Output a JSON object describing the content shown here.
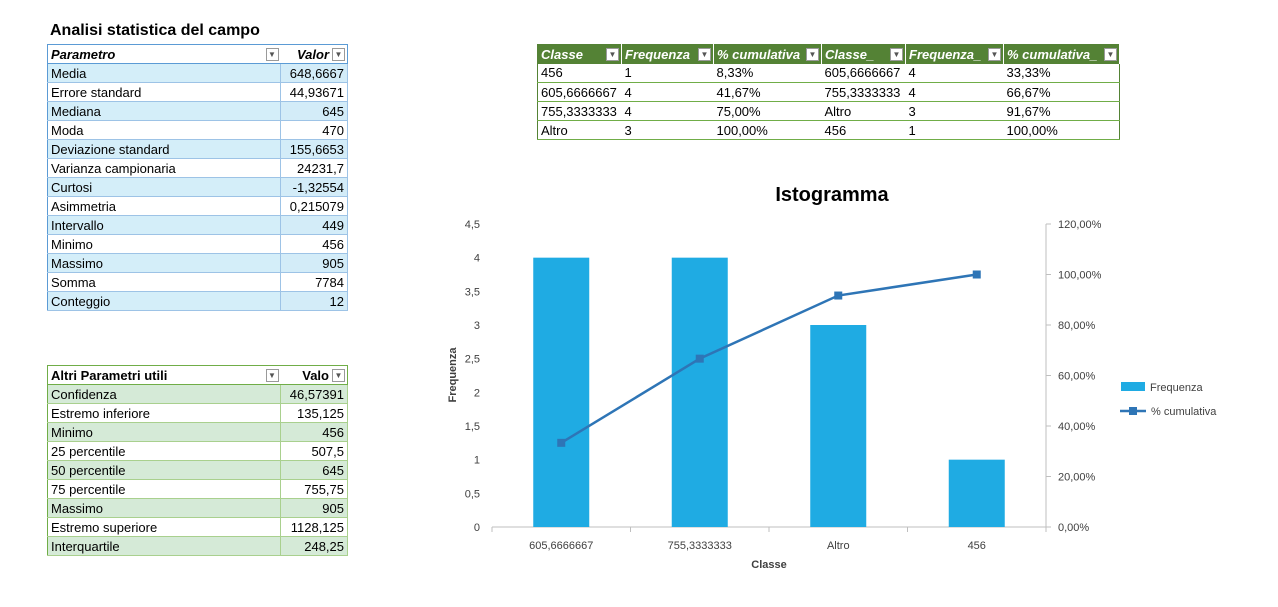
{
  "stats": {
    "title": "Analisi statistica del campo",
    "headers": [
      "Parametro",
      "Valor"
    ],
    "rows": [
      [
        "Media",
        "648,6667"
      ],
      [
        "Errore standard",
        "44,93671"
      ],
      [
        "Mediana",
        "645"
      ],
      [
        "Moda",
        "470"
      ],
      [
        "Deviazione standard",
        "155,6653"
      ],
      [
        "Varianza campionaria",
        "24231,7"
      ],
      [
        "Curtosi",
        "-1,32554"
      ],
      [
        "Asimmetria",
        "0,215079"
      ],
      [
        "Intervallo",
        "449"
      ],
      [
        "Minimo",
        "456"
      ],
      [
        "Massimo",
        "905"
      ],
      [
        "Somma",
        "7784"
      ],
      [
        "Conteggio",
        "12"
      ]
    ]
  },
  "other": {
    "headers": [
      "Altri Parametri utili",
      "Valo"
    ],
    "rows": [
      [
        "Confidenza",
        "46,57391"
      ],
      [
        "Estremo inferiore",
        "135,125"
      ],
      [
        "Minimo",
        "456"
      ],
      [
        "25 percentile",
        "507,5"
      ],
      [
        "50 percentile",
        "645"
      ],
      [
        "75 percentile",
        "755,75"
      ],
      [
        "Massimo",
        "905"
      ],
      [
        "Estremo superiore",
        "1128,125"
      ],
      [
        "Interquartile",
        "248,25"
      ]
    ]
  },
  "freq": {
    "headers": [
      "Classe",
      "Frequenza",
      "% cumulativa",
      "Classe_",
      "Frequenza_",
      "% cumulativa_"
    ],
    "rows": [
      [
        "456",
        "1",
        "8,33%",
        "605,6666667",
        "4",
        "33,33%"
      ],
      [
        "605,6666667",
        "4",
        "41,67%",
        "755,3333333",
        "4",
        "66,67%"
      ],
      [
        "755,3333333",
        "4",
        "75,00%",
        "Altro",
        "3",
        "91,67%"
      ],
      [
        "Altro",
        "3",
        "100,00%",
        "456",
        "1",
        "100,00%"
      ]
    ]
  },
  "colors": {
    "bar": "#1fabe3",
    "line": "#2e75b6",
    "blue_band": "#d3ecf8",
    "green_band": "#d5ead7",
    "green_header": "#548235"
  },
  "chart_data": {
    "type": "bar",
    "title": "Istogramma",
    "xlabel": "Classe",
    "ylabel": "Frequenza",
    "categories": [
      "605,6666667",
      "755,3333333",
      "Altro",
      "456"
    ],
    "series": [
      {
        "name": "Frequenza",
        "type": "bar",
        "axis": "left",
        "values": [
          4,
          4,
          3,
          1
        ]
      },
      {
        "name": "% cumulativa",
        "type": "line",
        "axis": "right",
        "values": [
          33.33,
          66.67,
          91.67,
          100
        ]
      }
    ],
    "ylim": [
      0,
      4.5
    ],
    "yticks": [
      "0",
      "0,5",
      "1",
      "1,5",
      "2",
      "2,5",
      "3",
      "3,5",
      "4",
      "4,5"
    ],
    "y2lim": [
      0,
      120
    ],
    "y2ticks": [
      "0,00%",
      "20,00%",
      "40,00%",
      "60,00%",
      "80,00%",
      "100,00%",
      "120,00%"
    ],
    "legend": "right",
    "grid": false
  }
}
